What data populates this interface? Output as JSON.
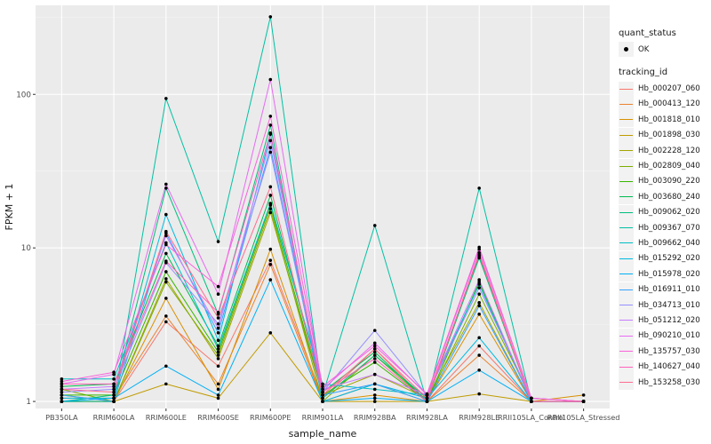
{
  "chart_data": {
    "type": "line",
    "xlabel": "sample_name",
    "ylabel": "FPKM + 1",
    "y_scale": "log10",
    "ylim": [
      0.9,
      380
    ],
    "grid": true,
    "legend_position": "right",
    "categories": [
      "PB350LA",
      "RRIM600LA",
      "RRIM600LE",
      "RRIM600SE",
      "RRIM600PE",
      "RRIM901LA",
      "RRIM928BA",
      "RRIM928LA",
      "RRIM928LE",
      "RRII105LA_Control",
      "RRII105LA_Stressed"
    ],
    "y_ticks": [
      1,
      10,
      100
    ],
    "y_tick_labels": [
      "1",
      "10",
      "100"
    ],
    "legend_quant": {
      "title": "quant_status",
      "label": "OK"
    },
    "legend_series_title": "tracking_id",
    "series": [
      {
        "name": "Hb_000207_060",
        "color": "#F8766D",
        "values": [
          1.0,
          1.0,
          3.3,
          1.7,
          8.3,
          1.05,
          2.2,
          1.0,
          2.3,
          1.0,
          1.0
        ]
      },
      {
        "name": "Hb_000413_120",
        "color": "#EA8331",
        "values": [
          1.05,
          1.05,
          3.6,
          1.3,
          7.8,
          1.0,
          1.3,
          1.0,
          2.0,
          1.0,
          1.0
        ]
      },
      {
        "name": "Hb_001818_010",
        "color": "#D89000",
        "values": [
          1.0,
          1.0,
          4.7,
          1.2,
          9.8,
          1.0,
          1.1,
          1.0,
          3.7,
          1.0,
          1.1
        ]
      },
      {
        "name": "Hb_001898_030",
        "color": "#C09B00",
        "values": [
          1.0,
          1.0,
          1.3,
          1.05,
          2.8,
          1.0,
          1.0,
          1.0,
          1.12,
          1.0,
          1.0
        ]
      },
      {
        "name": "Hb_002228_120",
        "color": "#A3A500",
        "values": [
          1.1,
          1.0,
          6.3,
          1.9,
          17.0,
          1.1,
          1.5,
          1.05,
          4.4,
          1.0,
          1.0
        ]
      },
      {
        "name": "Hb_002809_040",
        "color": "#7CAE00",
        "values": [
          1.2,
          1.0,
          6.0,
          2.0,
          18.0,
          1.0,
          2.0,
          1.0,
          5.0,
          1.05,
          1.0
        ]
      },
      {
        "name": "Hb_003090_220",
        "color": "#39B600",
        "values": [
          1.1,
          1.1,
          7.0,
          2.1,
          19.0,
          1.1,
          1.8,
          1.0,
          6.0,
          1.0,
          1.0
        ]
      },
      {
        "name": "Hb_003680_240",
        "color": "#00BB4E",
        "values": [
          1.25,
          1.3,
          9.2,
          2.3,
          22.0,
          1.15,
          2.1,
          1.0,
          8.8,
          1.0,
          1.0
        ]
      },
      {
        "name": "Hb_009062_020",
        "color": "#00BF7D",
        "values": [
          1.0,
          1.1,
          24.5,
          3.7,
          63.0,
          1.05,
          2.0,
          1.05,
          8.6,
          1.0,
          1.0
        ]
      },
      {
        "name": "Hb_009367_070",
        "color": "#00C1A3",
        "values": [
          1.0,
          1.0,
          94.0,
          11.0,
          320.0,
          1.1,
          14.0,
          1.0,
          24.5,
          1.0,
          1.0
        ]
      },
      {
        "name": "Hb_009662_040",
        "color": "#00BFC4",
        "values": [
          1.4,
          1.4,
          10.8,
          2.2,
          19.5,
          1.3,
          1.2,
          1.1,
          5.8,
          1.0,
          1.0
        ]
      },
      {
        "name": "Hb_015292_020",
        "color": "#00BAE0",
        "values": [
          1.05,
          1.05,
          16.5,
          2.5,
          55.0,
          1.0,
          1.3,
          1.05,
          2.6,
          1.0,
          1.0
        ]
      },
      {
        "name": "Hb_015978_020",
        "color": "#00B0F6",
        "values": [
          1.0,
          1.05,
          1.7,
          1.1,
          6.2,
          1.0,
          1.05,
          1.0,
          1.6,
          1.0,
          1.0
        ]
      },
      {
        "name": "Hb_016911_010",
        "color": "#35A2FF",
        "values": [
          1.1,
          1.0,
          12.5,
          2.8,
          45.0,
          1.1,
          1.3,
          1.0,
          4.2,
          1.0,
          1.0
        ]
      },
      {
        "name": "Hb_034713_010",
        "color": "#9590FF",
        "values": [
          1.15,
          1.2,
          8.0,
          3.2,
          42.0,
          1.15,
          2.9,
          1.1,
          5.5,
          1.05,
          1.0
        ]
      },
      {
        "name": "Hb_051212_020",
        "color": "#C77CFF",
        "values": [
          1.2,
          1.25,
          12.0,
          3.0,
          50.0,
          1.2,
          1.5,
          1.1,
          6.2,
          1.0,
          1.0
        ]
      },
      {
        "name": "Hb_090210_010",
        "color": "#E76BF3",
        "values": [
          1.3,
          1.5,
          26.0,
          5.0,
          125.0,
          1.2,
          2.4,
          1.1,
          9.8,
          1.05,
          1.0
        ]
      },
      {
        "name": "Hb_135757_030",
        "color": "#FA62DB",
        "values": [
          1.35,
          1.55,
          10.5,
          5.6,
          72.0,
          1.25,
          2.3,
          1.12,
          10.1,
          1.05,
          1.0
        ]
      },
      {
        "name": "Hb_140627_040",
        "color": "#FF62BC",
        "values": [
          1.3,
          1.3,
          8.2,
          3.8,
          56.0,
          1.15,
          1.9,
          1.0,
          9.3,
          1.0,
          1.0
        ]
      },
      {
        "name": "Hb_153258_030",
        "color": "#FF6C91",
        "values": [
          1.2,
          1.15,
          12.8,
          3.5,
          25.0,
          1.1,
          2.2,
          1.05,
          9.0,
          1.0,
          1.0
        ]
      }
    ]
  }
}
